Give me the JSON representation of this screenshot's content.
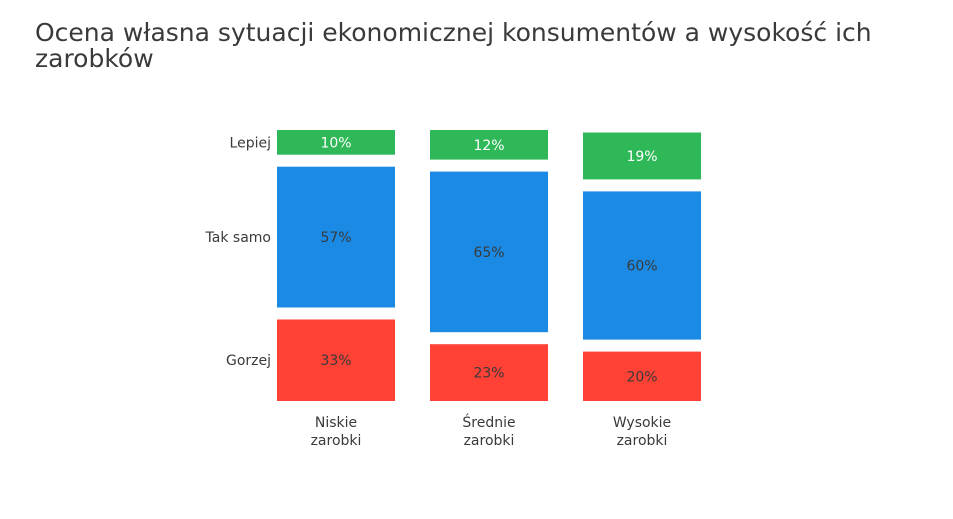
{
  "chart_data": {
    "type": "bar",
    "stacked": true,
    "normalized": true,
    "title": "Ocena własna sytuacji ekonomicznej konsumentów a wysokość ich zarobków",
    "categories": [
      [
        "Niskie",
        "zarobki"
      ],
      [
        "Średnie",
        "zarobki"
      ],
      [
        "Wysokie",
        "zarobki"
      ]
    ],
    "series": [
      {
        "name": "Gorzej",
        "values": [
          33,
          23,
          20
        ],
        "labels": [
          "33%",
          "23%",
          "20%"
        ],
        "color": "#ff4136"
      },
      {
        "name": "Tak samo",
        "values": [
          57,
          65,
          60
        ],
        "labels": [
          "57%",
          "65%",
          "60%"
        ],
        "color": "#1a8ae5"
      },
      {
        "name": "Lepiej",
        "values": [
          10,
          12,
          19
        ],
        "labels": [
          "10%",
          "12%",
          "19%"
        ],
        "color": "#2eb857"
      }
    ],
    "row_labels_side": "left",
    "value_label_colors": {
      "Gorzej": "#3a3a3a",
      "Tak samo": "#3a3a3a",
      "Lepiej": "#ffffff"
    },
    "grid": false,
    "legend": "none"
  }
}
